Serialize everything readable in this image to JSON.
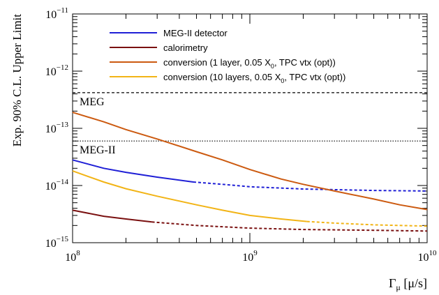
{
  "chart_data": {
    "type": "line",
    "ylabel": "Exp. 90% C.L. Upper Limit",
    "xlabel_main": "Γ",
    "xlabel_sub": "μ",
    "xlabel_unit": " [μ/s]",
    "x_scale": "log",
    "y_scale": "log",
    "xlim": [
      100000000,
      10000000000
    ],
    "ylim": [
      1e-15,
      1e-11
    ],
    "grid": false,
    "legend_position": "top-left",
    "x_tick_labels": [
      {
        "base": "10",
        "exp": "8",
        "value": 100000000
      },
      {
        "base": "10",
        "exp": "9",
        "value": 1000000000
      },
      {
        "base": "10",
        "exp": "10",
        "value": 10000000000
      }
    ],
    "y_tick_labels": [
      {
        "base": "10",
        "exp": "−15",
        "value": 1e-15
      },
      {
        "base": "10",
        "exp": "−14",
        "value": 1e-14
      },
      {
        "base": "10",
        "exp": "−13",
        "value": 1e-13
      },
      {
        "base": "10",
        "exp": "−12",
        "value": 1e-12
      },
      {
        "base": "10",
        "exp": "−11",
        "value": 1e-11
      }
    ],
    "reference_lines": [
      {
        "label": "MEG",
        "y": 4.2e-13,
        "style": "dashed"
      },
      {
        "label": "MEG-II",
        "y": 6e-14,
        "style": "dotted"
      }
    ],
    "series": [
      {
        "name": "MEG-II detector",
        "legend_parts": [
          "MEG-II detector"
        ],
        "color": "#1f1fd6",
        "solid_until": 480000000,
        "points": [
          [
            100000000,
            2.8e-14
          ],
          [
            150000000,
            2e-14
          ],
          [
            200000000,
            1.7e-14
          ],
          [
            300000000,
            1.4e-14
          ],
          [
            480000000,
            1.15e-14
          ],
          [
            700000000,
            1.05e-14
          ],
          [
            1000000000,
            9.5e-15
          ],
          [
            2000000000,
            8.7e-15
          ],
          [
            5000000000,
            8.2e-15
          ],
          [
            10000000000,
            8e-15
          ]
        ]
      },
      {
        "name": "calorimetry",
        "legend_parts": [
          "calorimetry"
        ],
        "color": "#7a1010",
        "solid_until": 280000000,
        "points": [
          [
            100000000,
            3.7e-15
          ],
          [
            150000000,
            2.9e-15
          ],
          [
            200000000,
            2.6e-15
          ],
          [
            280000000,
            2.3e-15
          ],
          [
            500000000,
            2e-15
          ],
          [
            1000000000,
            1.8e-15
          ],
          [
            2000000000,
            1.7e-15
          ],
          [
            5000000000,
            1.65e-15
          ],
          [
            10000000000,
            1.6e-15
          ]
        ]
      },
      {
        "name": "conversion (1 layer, 0.05 X0, TPC vtx (opt))",
        "legend_parts": [
          "conversion (1 layer, 0.05 X",
          "0",
          ", TPC vtx (opt))"
        ],
        "color": "#cc5a10",
        "solid_until": 10000000000,
        "points": [
          [
            100000000,
            1.9e-13
          ],
          [
            150000000,
            1.3e-13
          ],
          [
            200000000,
            9.5e-14
          ],
          [
            300000000,
            6.5e-14
          ],
          [
            500000000,
            3.9e-14
          ],
          [
            700000000,
            2.8e-14
          ],
          [
            1000000000,
            1.9e-14
          ],
          [
            1500000000,
            1.3e-14
          ],
          [
            2000000000,
            1.05e-14
          ],
          [
            3000000000,
            8e-15
          ],
          [
            5000000000,
            5.8e-15
          ],
          [
            7000000000,
            4.6e-15
          ],
          [
            10000000000,
            3.8e-15
          ]
        ]
      },
      {
        "name": "conversion (10 layers, 0.05 X0, TPC vtx (opt))",
        "legend_parts": [
          "conversion (10 layers, 0.05 X",
          "0",
          ", TPC vtx (opt))"
        ],
        "color": "#f2b416",
        "solid_until": 2100000000,
        "points": [
          [
            100000000,
            1.8e-14
          ],
          [
            150000000,
            1.15e-14
          ],
          [
            200000000,
            8.8e-15
          ],
          [
            300000000,
            6.5e-15
          ],
          [
            500000000,
            4.6e-15
          ],
          [
            700000000,
            3.7e-15
          ],
          [
            1000000000,
            3e-15
          ],
          [
            1500000000,
            2.6e-15
          ],
          [
            2100000000,
            2.35e-15
          ],
          [
            3000000000,
            2.2e-15
          ],
          [
            5000000000,
            2.05e-15
          ],
          [
            10000000000,
            1.95e-15
          ]
        ]
      }
    ]
  }
}
